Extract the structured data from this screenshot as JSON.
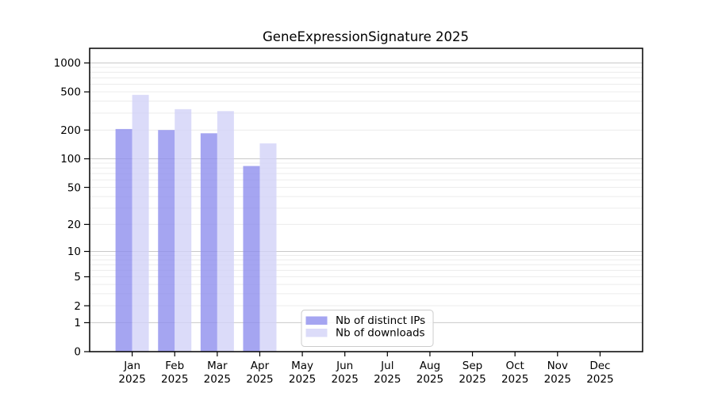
{
  "title": "GeneExpressionSignature 2025",
  "colors": {
    "bar_distinct_ips": "#8f8fee",
    "bar_downloads": "#d2d2f8",
    "bar_opacity": 0.8,
    "legend_swatch_ips": "#a5a5f1",
    "legend_swatch_downloads": "#dcdcf9",
    "grid_major": "#c9c9c9",
    "grid_minor": "#ececec",
    "frame": "#000000",
    "legend_border": "#cccccc",
    "legend_background": "#ffffff"
  },
  "legend": {
    "items": [
      {
        "label": "Nb of distinct IPs"
      },
      {
        "label": "Nb of downloads"
      }
    ]
  },
  "chart_data": {
    "type": "bar",
    "title": "GeneExpressionSignature 2025",
    "categories": [
      "Jan 2025",
      "Feb 2025",
      "Mar 2025",
      "Apr 2025",
      "May 2025",
      "Jun 2025",
      "Jul 2025",
      "Aug 2025",
      "Sep 2025",
      "Oct 2025",
      "Nov 2025",
      "Dec 2025"
    ],
    "series": [
      {
        "name": "Nb of distinct IPs",
        "values": [
          205,
          200,
          185,
          84,
          0,
          0,
          0,
          0,
          0,
          0,
          0,
          0
        ]
      },
      {
        "name": "Nb of downloads",
        "values": [
          465,
          330,
          315,
          145,
          0,
          0,
          0,
          0,
          0,
          0,
          0,
          0
        ]
      }
    ],
    "xlabel": "",
    "ylabel": "",
    "yscale": "log1p",
    "ylim": [
      0,
      1420
    ],
    "yticks": [
      0,
      1,
      2,
      5,
      10,
      20,
      50,
      100,
      200,
      500,
      1000
    ],
    "grid": "major-and-minor-horizontal",
    "legend_position": "lower-center"
  }
}
